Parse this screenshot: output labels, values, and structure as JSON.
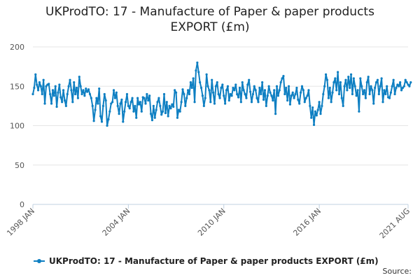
{
  "chart_data": {
    "type": "line",
    "title_lines": [
      "UKProdTO: 17 - Manufacture of Paper & paper products",
      "EXPORT (£m)"
    ],
    "xlabel": "",
    "ylabel": "",
    "ylim": [
      0,
      200
    ],
    "yticks": [
      0,
      50,
      100,
      150,
      200
    ],
    "x_range": [
      "1998-01",
      "2021-08"
    ],
    "xticks": [
      {
        "date": "1998-01",
        "label": "1998 JAN"
      },
      {
        "date": "2004-01",
        "label": "2004 JAN"
      },
      {
        "date": "2010-01",
        "label": "2010 JAN"
      },
      {
        "date": "2016-01",
        "label": "2016 JAN"
      },
      {
        "date": "2021-08",
        "label": "2021 AUG"
      }
    ],
    "grid": true,
    "legend_position": "bottom-left",
    "series": [
      {
        "name": "UKProdTO: 17 - Manufacture of Paper & paper products EXPORT (£m)",
        "color": "#0e7fc2",
        "x_start": "1998-01",
        "frequency": "monthly",
        "values": [
          140,
          148,
          165,
          152,
          145,
          155,
          150,
          140,
          158,
          128,
          150,
          152,
          153,
          140,
          128,
          145,
          138,
          150,
          124,
          142,
          152,
          136,
          130,
          145,
          132,
          125,
          140,
          150,
          158,
          145,
          130,
          155,
          140,
          148,
          135,
          162,
          150,
          140,
          145,
          138,
          147,
          143,
          146,
          140,
          135,
          125,
          106,
          120,
          135,
          128,
          147,
          112,
          105,
          125,
          140,
          132,
          100,
          108,
          118,
          128,
          130,
          145,
          135,
          142,
          125,
          115,
          128,
          133,
          105,
          118,
          130,
          140,
          125,
          122,
          130,
          135,
          118,
          125,
          110,
          135,
          127,
          130,
          118,
          136,
          135,
          128,
          140,
          132,
          138,
          115,
          107,
          125,
          110,
          120,
          130,
          135,
          125,
          114,
          118,
          140,
          116,
          130,
          112,
          125,
          122,
          127,
          124,
          145,
          142,
          110,
          120,
          118,
          130,
          146,
          140,
          125,
          135,
          145,
          140,
          155,
          148,
          160,
          130,
          170,
          180,
          168,
          155,
          148,
          138,
          125,
          135,
          165,
          150,
          145,
          130,
          158,
          142,
          128,
          150,
          155,
          140,
          135,
          148,
          152,
          138,
          128,
          145,
          150,
          132,
          140,
          138,
          148,
          145,
          152,
          140,
          136,
          148,
          130,
          155,
          145,
          140,
          135,
          152,
          158,
          143,
          130,
          140,
          150,
          145,
          135,
          130,
          148,
          140,
          155,
          133,
          145,
          125,
          138,
          150,
          142,
          138,
          132,
          145,
          115,
          150,
          138,
          145,
          155,
          160,
          163,
          140,
          148,
          132,
          150,
          127,
          138,
          142,
          135,
          140,
          148,
          133,
          128,
          142,
          150,
          145,
          130,
          135,
          138,
          145,
          125,
          110,
          123,
          101,
          118,
          113,
          120,
          130,
          115,
          125,
          140,
          150,
          165,
          158,
          135,
          148,
          130,
          142,
          155,
          160,
          145,
          168,
          140,
          155,
          135,
          125,
          150,
          158,
          145,
          162,
          148,
          165,
          140,
          160,
          150,
          138,
          145,
          118,
          160,
          150,
          140,
          145,
          135,
          155,
          162,
          140,
          150,
          145,
          128,
          148,
          155,
          158,
          140,
          150,
          160,
          130,
          145,
          140,
          150,
          136,
          135,
          142,
          150,
          158,
          140,
          148,
          152,
          150,
          155,
          145,
          148,
          150,
          158,
          155,
          152,
          150,
          155
        ]
      }
    ]
  },
  "source_label": "Source:"
}
